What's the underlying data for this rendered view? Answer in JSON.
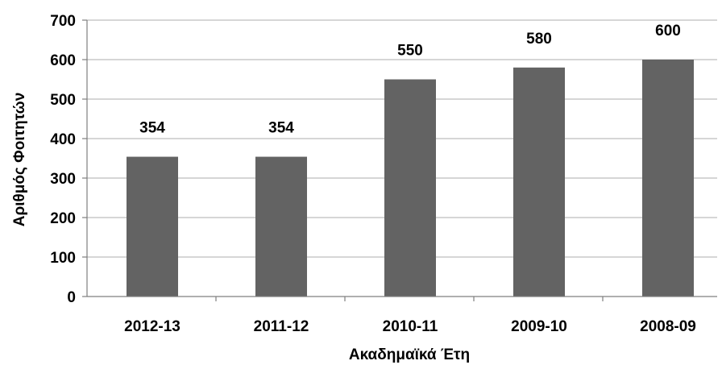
{
  "chart_data": {
    "type": "bar",
    "title": "",
    "xlabel": "Ακαδημαϊκά Έτη",
    "ylabel": "Αριθμός Φοιτητών",
    "categories": [
      "2012-13",
      "2011-12",
      "2010-11",
      "2009-10",
      "2008-09"
    ],
    "values": [
      354,
      354,
      550,
      580,
      600
    ],
    "data_labels": [
      "354",
      "354",
      "550",
      "580",
      "600"
    ],
    "ylim": [
      0,
      700
    ],
    "yticks": [
      0,
      100,
      200,
      300,
      400,
      500,
      600,
      700
    ],
    "grid": true,
    "legend": "none",
    "colors": {
      "bar": "#636363",
      "grid": "#bdbdbd",
      "axis": "#7f7f7f",
      "text": "#000000"
    }
  }
}
